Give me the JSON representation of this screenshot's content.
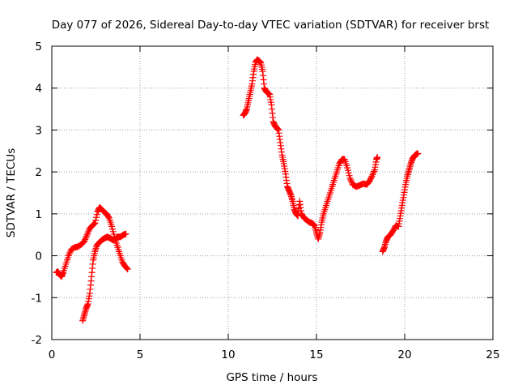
{
  "chart_data": {
    "type": "scatter",
    "title": "Day 077 of 2026, Sidereal Day-to-day VTEC variation (SDTVAR) for receiver brst",
    "xlabel": "GPS time / hours",
    "ylabel": "SDTVAR / TECUs",
    "xlim": [
      0,
      25
    ],
    "ylim": [
      -2,
      5
    ],
    "xticks": [
      "0",
      "5",
      "10",
      "15",
      "20",
      "25"
    ],
    "yticks": [
      "-2",
      "-1",
      "0",
      "1",
      "2",
      "3",
      "4",
      "5"
    ],
    "xtick_values": [
      0,
      5,
      10,
      15,
      20,
      25
    ],
    "ytick_values": [
      -2,
      -1,
      0,
      1,
      2,
      3,
      4,
      5
    ],
    "grid": true,
    "legend": "none",
    "marker": "+",
    "series": [
      {
        "color": "#ff0000",
        "segments": [
          [
            [
              0.25,
              -0.4
            ],
            [
              0.35,
              -0.38
            ],
            [
              0.45,
              -0.45
            ],
            [
              0.55,
              -0.5
            ],
            [
              0.65,
              -0.4
            ],
            [
              0.8,
              -0.2
            ],
            [
              0.95,
              0.0
            ],
            [
              1.1,
              0.15
            ],
            [
              1.3,
              0.2
            ],
            [
              1.5,
              0.22
            ],
            [
              1.7,
              0.28
            ],
            [
              1.85,
              0.35
            ],
            [
              2.0,
              0.5
            ],
            [
              2.15,
              0.65
            ],
            [
              2.3,
              0.72
            ],
            [
              2.45,
              0.78
            ],
            [
              2.6,
              1.05
            ],
            [
              2.7,
              1.15
            ],
            [
              2.8,
              1.12
            ],
            [
              2.95,
              1.05
            ],
            [
              3.1,
              1.0
            ],
            [
              3.25,
              0.9
            ],
            [
              3.4,
              0.7
            ],
            [
              3.55,
              0.45
            ],
            [
              3.7,
              0.25
            ],
            [
              3.85,
              0.05
            ],
            [
              4.0,
              -0.15
            ],
            [
              4.15,
              -0.25
            ],
            [
              4.3,
              -0.32
            ]
          ],
          [
            [
              1.75,
              -1.55
            ],
            [
              1.85,
              -1.4
            ],
            [
              1.95,
              -1.25
            ],
            [
              2.05,
              -1.15
            ],
            [
              2.15,
              -0.9
            ],
            [
              2.25,
              -0.5
            ],
            [
              2.35,
              -0.1
            ],
            [
              2.45,
              0.1
            ],
            [
              2.55,
              0.25
            ],
            [
              2.7,
              0.32
            ],
            [
              2.85,
              0.38
            ],
            [
              3.0,
              0.42
            ],
            [
              3.15,
              0.45
            ],
            [
              3.3,
              0.42
            ],
            [
              3.45,
              0.38
            ],
            [
              3.6,
              0.4
            ],
            [
              3.75,
              0.45
            ],
            [
              3.9,
              0.45
            ],
            [
              4.05,
              0.5
            ],
            [
              4.2,
              0.52
            ]
          ],
          [
            [
              10.85,
              3.35
            ],
            [
              10.95,
              3.4
            ],
            [
              11.05,
              3.5
            ],
            [
              11.15,
              3.7
            ],
            [
              11.25,
              3.9
            ],
            [
              11.35,
              4.1
            ],
            [
              11.45,
              4.4
            ],
            [
              11.55,
              4.62
            ],
            [
              11.65,
              4.68
            ],
            [
              11.75,
              4.65
            ],
            [
              11.85,
              4.6
            ],
            [
              11.95,
              4.4
            ],
            [
              12.05,
              4.0
            ],
            [
              12.15,
              3.92
            ],
            [
              12.25,
              3.88
            ],
            [
              12.35,
              3.85
            ],
            [
              12.45,
              3.6
            ],
            [
              12.55,
              3.2
            ],
            [
              12.65,
              3.1
            ],
            [
              12.75,
              3.05
            ],
            [
              12.85,
              3.0
            ],
            [
              12.95,
              2.7
            ],
            [
              13.05,
              2.4
            ],
            [
              13.15,
              2.2
            ],
            [
              13.25,
              1.95
            ],
            [
              13.35,
              1.65
            ],
            [
              13.45,
              1.55
            ],
            [
              13.55,
              1.45
            ],
            [
              13.65,
              1.3
            ],
            [
              13.75,
              1.1
            ],
            [
              13.85,
              1.0
            ],
            [
              13.95,
              0.95
            ],
            [
              14.05,
              1.3
            ],
            [
              14.15,
              1.0
            ],
            [
              14.3,
              0.9
            ],
            [
              14.45,
              0.85
            ],
            [
              14.6,
              0.8
            ],
            [
              14.75,
              0.78
            ],
            [
              14.9,
              0.72
            ],
            [
              15.0,
              0.55
            ],
            [
              15.1,
              0.4
            ],
            [
              15.2,
              0.55
            ],
            [
              15.3,
              0.8
            ],
            [
              15.4,
              1.0
            ],
            [
              15.55,
              1.2
            ],
            [
              15.7,
              1.4
            ],
            [
              15.85,
              1.6
            ],
            [
              16.0,
              1.8
            ],
            [
              16.15,
              2.0
            ],
            [
              16.3,
              2.2
            ],
            [
              16.45,
              2.3
            ],
            [
              16.6,
              2.3
            ],
            [
              16.75,
              2.1
            ],
            [
              16.9,
              1.85
            ],
            [
              17.05,
              1.7
            ],
            [
              17.25,
              1.65
            ],
            [
              17.45,
              1.68
            ],
            [
              17.65,
              1.72
            ],
            [
              17.85,
              1.7
            ],
            [
              18.0,
              1.78
            ],
            [
              18.15,
              1.9
            ],
            [
              18.3,
              2.05
            ],
            [
              18.4,
              2.3
            ],
            [
              18.45,
              2.35
            ]
          ],
          [
            [
              18.75,
              0.1
            ],
            [
              18.85,
              0.2
            ],
            [
              18.95,
              0.35
            ],
            [
              19.05,
              0.45
            ],
            [
              19.2,
              0.5
            ],
            [
              19.35,
              0.6
            ],
            [
              19.5,
              0.72
            ],
            [
              19.65,
              0.7
            ],
            [
              19.75,
              0.95
            ],
            [
              19.85,
              1.2
            ],
            [
              19.95,
              1.45
            ],
            [
              20.05,
              1.7
            ],
            [
              20.15,
              1.9
            ],
            [
              20.25,
              2.05
            ],
            [
              20.35,
              2.2
            ],
            [
              20.45,
              2.32
            ],
            [
              20.55,
              2.38
            ],
            [
              20.65,
              2.42
            ],
            [
              20.75,
              2.44
            ]
          ]
        ]
      }
    ]
  }
}
